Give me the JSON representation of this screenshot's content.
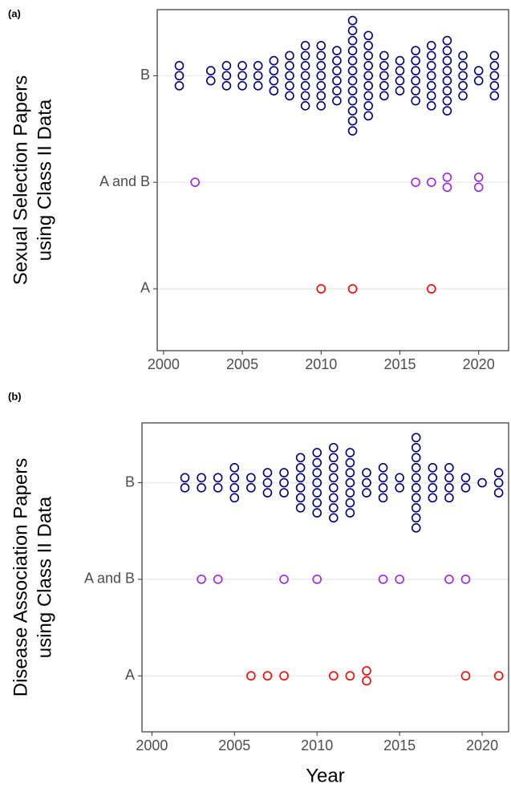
{
  "chart_data": [
    {
      "type": "dot",
      "panel_label": "(a)",
      "ylabel": [
        "Sexual Selection Papers",
        "using Class II Data"
      ],
      "categories": [
        "A",
        "A and B",
        "B"
      ],
      "xlim": [
        1999.6,
        2021.9
      ],
      "xticks": [
        2000,
        2005,
        2010,
        2015,
        2020
      ],
      "grid": true,
      "series": [
        {
          "color": "#ff0000",
          "x": [
            2010,
            2012,
            2017
          ],
          "values": [
            1,
            1,
            1
          ]
        },
        {
          "color": "#a020f0",
          "x": [
            2002,
            2016,
            2017,
            2018,
            2020
          ],
          "values": [
            1,
            1,
            1,
            2,
            2
          ]
        },
        {
          "color": "#000080",
          "x": [
            2001,
            2003,
            2004,
            2005,
            2006,
            2007,
            2008,
            2009,
            2010,
            2011,
            2012,
            2013,
            2014,
            2015,
            2016,
            2017,
            2018,
            2019,
            2020,
            2021
          ],
          "values": [
            3,
            2,
            3,
            3,
            3,
            4,
            5,
            7,
            7,
            6,
            12,
            9,
            5,
            4,
            6,
            7,
            8,
            5,
            2,
            5
          ]
        }
      ]
    },
    {
      "type": "dot",
      "panel_label": "(b)",
      "ylabel": [
        "Disease Association Papers",
        "using Class II Data"
      ],
      "xlabel": "Year",
      "categories": [
        "A",
        "A and B",
        "B"
      ],
      "xlim": [
        1999.4,
        2021.6
      ],
      "xticks": [
        2000,
        2005,
        2010,
        2015,
        2020
      ],
      "grid": true,
      "series": [
        {
          "color": "#ff0000",
          "x": [
            2006,
            2007,
            2008,
            2011,
            2012,
            2013,
            2019,
            2021
          ],
          "values": [
            1,
            1,
            1,
            1,
            1,
            2,
            1,
            1
          ]
        },
        {
          "color": "#a020f0",
          "x": [
            2003,
            2004,
            2008,
            2010,
            2014,
            2015,
            2018,
            2019
          ],
          "values": [
            1,
            1,
            1,
            1,
            1,
            1,
            1,
            1
          ]
        },
        {
          "color": "#000080",
          "x": [
            2002,
            2003,
            2004,
            2005,
            2006,
            2007,
            2008,
            2009,
            2010,
            2011,
            2012,
            2013,
            2014,
            2015,
            2016,
            2017,
            2018,
            2019,
            2020,
            2021
          ],
          "values": [
            2,
            2,
            2,
            4,
            2,
            3,
            3,
            6,
            7,
            8,
            7,
            3,
            4,
            2,
            10,
            4,
            4,
            2,
            1,
            3
          ]
        }
      ]
    }
  ]
}
